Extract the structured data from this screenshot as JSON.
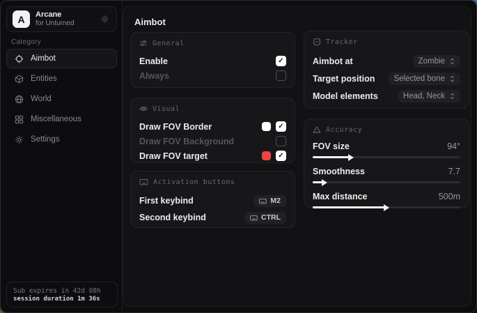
{
  "brand": {
    "initial": "A",
    "name": "Arcane",
    "subtitle": "for Unturned"
  },
  "sidebar": {
    "category_label": "Category",
    "items": [
      {
        "label": "Aimbot",
        "icon": "crosshair-icon",
        "active": true
      },
      {
        "label": "Entities",
        "icon": "cube-icon",
        "active": false
      },
      {
        "label": "World",
        "icon": "globe-icon",
        "active": false
      },
      {
        "label": "Miscellaneous",
        "icon": "grid-icon",
        "active": false
      },
      {
        "label": "Settings",
        "icon": "gear-icon",
        "active": false
      }
    ],
    "status": {
      "sub_expiry": "Sub expires in 42d 08h",
      "session_duration": "session duration 1m 36s"
    }
  },
  "main": {
    "title": "Aimbot"
  },
  "cards": {
    "general": {
      "title": "General",
      "rows": [
        {
          "label": "Enable",
          "checked": true
        },
        {
          "label": "Always",
          "checked": false
        }
      ]
    },
    "visual": {
      "title": "Visual",
      "rows": [
        {
          "label": "Draw FOV Border",
          "swatch": "#ffffff",
          "checked": true
        },
        {
          "label": "Draw FOV Background",
          "checked": false
        },
        {
          "label": "Draw FOV target",
          "swatch": "#ef4444",
          "checked": true
        }
      ]
    },
    "activation": {
      "title": "Activation buttons",
      "rows": [
        {
          "label": "First keybind",
          "key": "M2"
        },
        {
          "label": "Second keybind",
          "key": "CTRL"
        }
      ]
    },
    "tracker": {
      "title": "Tracker",
      "rows": [
        {
          "label": "Aimbot at",
          "value": "Zombie"
        },
        {
          "label": "Target position",
          "value": "Selected bone"
        },
        {
          "label": "Model elements",
          "value": "Head, Neck"
        }
      ]
    },
    "accuracy": {
      "title": "Accuracy",
      "sliders": [
        {
          "label": "FOV size",
          "value": "94°",
          "fill_percent": 25
        },
        {
          "label": "Smoothness",
          "value": "7.7",
          "fill_percent": 7
        },
        {
          "label": "Max distance",
          "value": "500m",
          "fill_percent": 49
        }
      ]
    }
  },
  "colors": {
    "accent_red": "#ef4444",
    "swatch_white": "#ffffff",
    "checkbox_checked_bg": "#ffffff",
    "slider_fill": "#f2f2f4"
  }
}
